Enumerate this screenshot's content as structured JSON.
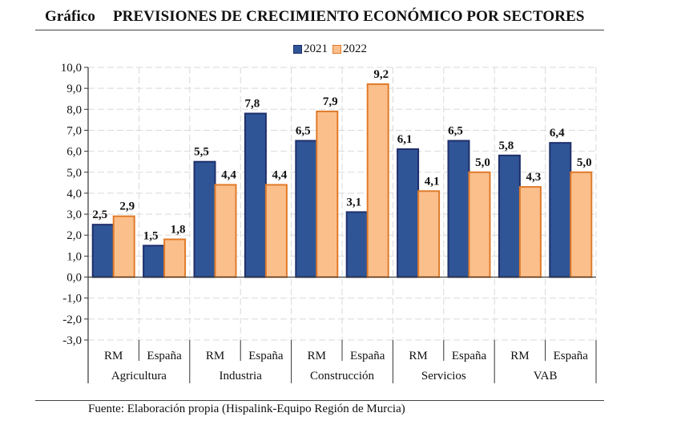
{
  "header": {
    "label": "Gráfico",
    "title": "PREVISIONES DE CRECIMIENTO ECONÓMICO POR SECTORES"
  },
  "source": "Fuente: Elaboración propia (Hispalink-Equipo Región de Murcia)",
  "colors": {
    "s2021_fill": "#2F5597",
    "s2021_stroke": "#1F2F6B",
    "s2022_fill": "#FBBF8C",
    "s2022_stroke": "#E07B2A",
    "grid": "#D9D9D9"
  },
  "chart_data": {
    "type": "bar",
    "title": "PREVISIONES DE CRECIMIENTO ECONÓMICO POR SECTORES",
    "xlabel": "",
    "ylabel": "",
    "ylim": [
      -3,
      10
    ],
    "yticks": [
      10,
      9,
      8,
      7,
      6,
      5,
      4,
      3,
      2,
      1,
      0,
      -1,
      -2,
      -3
    ],
    "ytick_labels": [
      "10,0",
      "9,0",
      "8,0",
      "7,0",
      "6,0",
      "5,0",
      "4,0",
      "3,0",
      "2,0",
      "1,0",
      "0,0",
      "-1,0",
      "-2,0",
      "-3,0"
    ],
    "grid": true,
    "legend_position": "top-center",
    "groups": [
      "Agricultura",
      "Industria",
      "Construcción",
      "Servicios",
      "VAB"
    ],
    "categories": [
      "RM",
      "España",
      "RM",
      "España",
      "RM",
      "España",
      "RM",
      "España",
      "RM",
      "España"
    ],
    "series": [
      {
        "name": "2021",
        "values": [
          2.5,
          1.5,
          5.5,
          7.8,
          6.5,
          3.1,
          6.1,
          6.5,
          5.8,
          6.4
        ],
        "labels": [
          "2,5",
          "1,5",
          "5,5",
          "7,8",
          "6,5",
          "3,1",
          "6,1",
          "6,5",
          "5,8",
          "6,4"
        ]
      },
      {
        "name": "2022",
        "values": [
          2.9,
          1.8,
          4.4,
          4.4,
          7.9,
          9.2,
          4.1,
          5.0,
          4.3,
          5.0
        ],
        "labels": [
          "2,9",
          "1,8",
          "4,4",
          "4,4",
          "7,9",
          "9,2",
          "4,1",
          "5,0",
          "4,3",
          "5,0"
        ]
      }
    ]
  }
}
